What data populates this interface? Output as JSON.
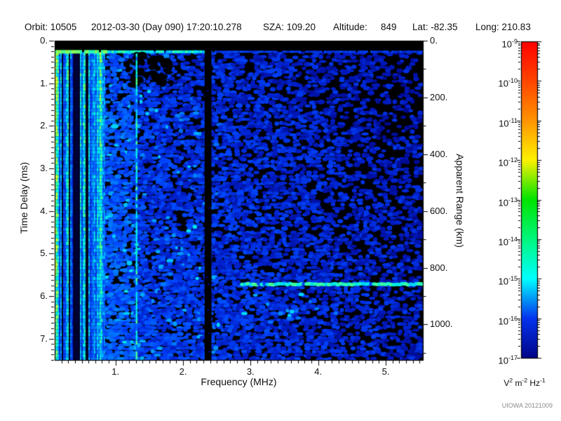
{
  "header": {
    "fields": [
      "Orbit: 10505",
      "2012-03-30 (Day 090) 17:20:10.278",
      "SZA: 109.20",
      "Altitude:",
      "849",
      "Lat: -82.35",
      "Long: 210.83"
    ]
  },
  "watermark": "UIOWA 20121009",
  "chart_data": {
    "type": "heatmap",
    "description": "MARSIS AIS radar ionogram: received spectral density vs sounding frequency and time delay",
    "xlabel": "Frequency (MHz)",
    "ylabel_left": "Time Delay (ms)",
    "ylabel_right": "Apparent Range (km)",
    "xlim_mhz": [
      0.1,
      5.55
    ],
    "ylim_ms": [
      0,
      7.5
    ],
    "apparent_range_km_per_ms": 150,
    "x_ticks": {
      "values": [
        1,
        2,
        3,
        4,
        5
      ],
      "labels": [
        "1.",
        "2.",
        "3.",
        "4.",
        "5."
      ],
      "minor_step_mhz": 0.1
    },
    "y_ticks": {
      "values": [
        0,
        1,
        2,
        3,
        4,
        5,
        6,
        7
      ],
      "labels": [
        "0.",
        "1.",
        "2.",
        "3.",
        "4.",
        "5.",
        "6.",
        "7."
      ],
      "minor_step_ms": 0.125
    },
    "y2_ticks": {
      "values_km": [
        0,
        200,
        400,
        600,
        800,
        1000
      ],
      "labels": [
        "0.",
        "200.",
        "400.",
        "600.",
        "800.",
        "1000."
      ],
      "minor_step_km": 100
    },
    "colorbar": {
      "scale": "log",
      "top_value": "1e-9",
      "bottom_value": "1e-17",
      "exponents": [
        -9,
        -10,
        -11,
        -12,
        -13,
        -14,
        -15,
        -16,
        -17
      ],
      "decade_colors": [
        "#ff0000",
        "#ff4500",
        "#ff9400",
        "#fdf200",
        "#00e400",
        "#00f77e",
        "#00ffff",
        "#0533ee",
        "#000488"
      ],
      "unit_parts": [
        [
          "V",
          "2"
        ],
        [
          "m",
          "-2"
        ],
        [
          "Hz",
          "-1"
        ]
      ]
    },
    "features": {
      "noise_seed": 987654321,
      "transmit_blank_ms": [
        0,
        0.215
      ],
      "leading_edge_ms": 0.26,
      "ionospheric_stripe_band_mhz": [
        0.1,
        0.84
      ],
      "stripe_gaps_mhz": [
        [
          0.19,
          0.21
        ],
        [
          0.3,
          0.32
        ],
        [
          0.36,
          0.47
        ],
        [
          0.54,
          0.585
        ]
      ],
      "plasma_harmonic_line_mhz": 1.31,
      "blanked_band_mhz": [
        2.33,
        2.41
      ],
      "surface_echo": {
        "delay_ms": 5.72,
        "freq_range_mhz": [
          2.86,
          5.55
        ]
      },
      "sub_echo_blobs": {
        "delay_range_ms": [
          5.95,
          6.7
        ],
        "freq_range_mhz": [
          2.45,
          4.45
        ]
      },
      "dark_patch": {
        "freq_range_mhz": [
          1.15,
          1.82
        ],
        "delay_range_ms": [
          0.3,
          1.05
        ]
      },
      "data_palette": [
        [
          0,
          "#000000"
        ],
        [
          0.16,
          "#000078"
        ],
        [
          0.3,
          "#001ec8"
        ],
        [
          0.42,
          "#0046ff"
        ],
        [
          0.54,
          "#0082ff"
        ],
        [
          0.64,
          "#00c8ff"
        ],
        [
          0.74,
          "#00f0e6"
        ],
        [
          0.84,
          "#3cffa0"
        ],
        [
          0.93,
          "#8cff50"
        ],
        [
          1,
          "#dcff28"
        ]
      ]
    }
  }
}
